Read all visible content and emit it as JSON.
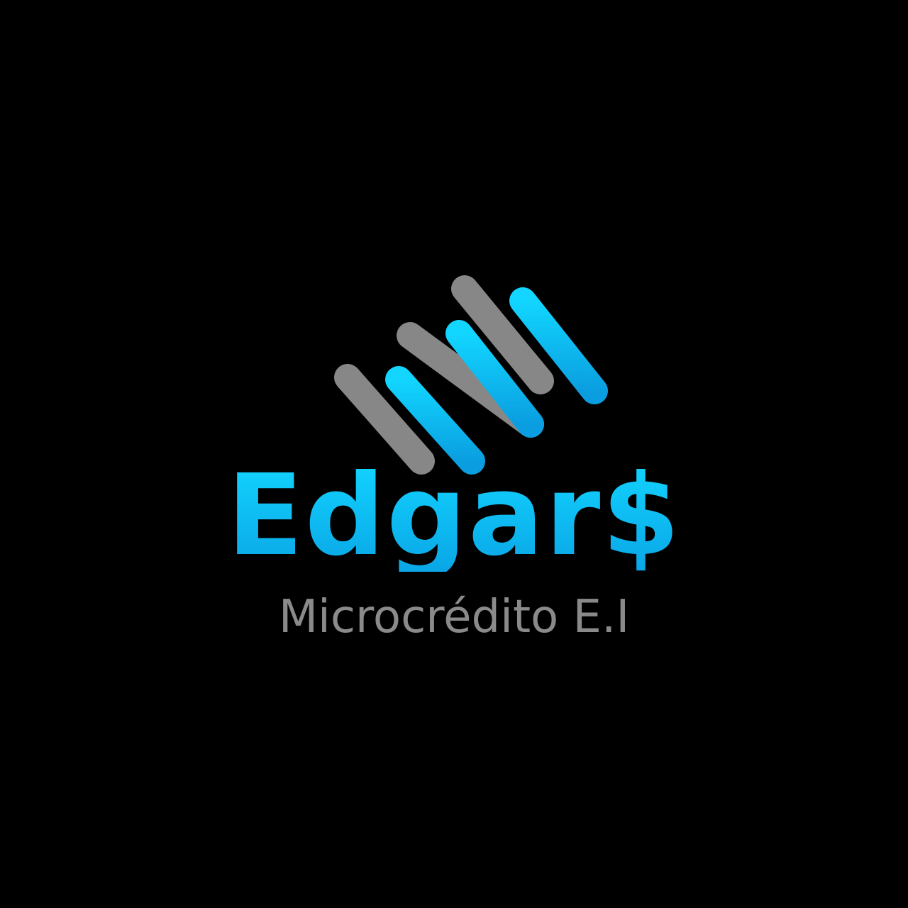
{
  "logo": {
    "brand_name": "Edgar$",
    "tagline": "Microcrédito E.I",
    "icon": "diagonal-stripes-mark",
    "colors": {
      "background": "#000000",
      "accent_blue": "#00c3f2",
      "accent_blue_dark": "#0a9ee0",
      "gray": "#878787",
      "tagline_gray": "#8a8a8a"
    }
  }
}
